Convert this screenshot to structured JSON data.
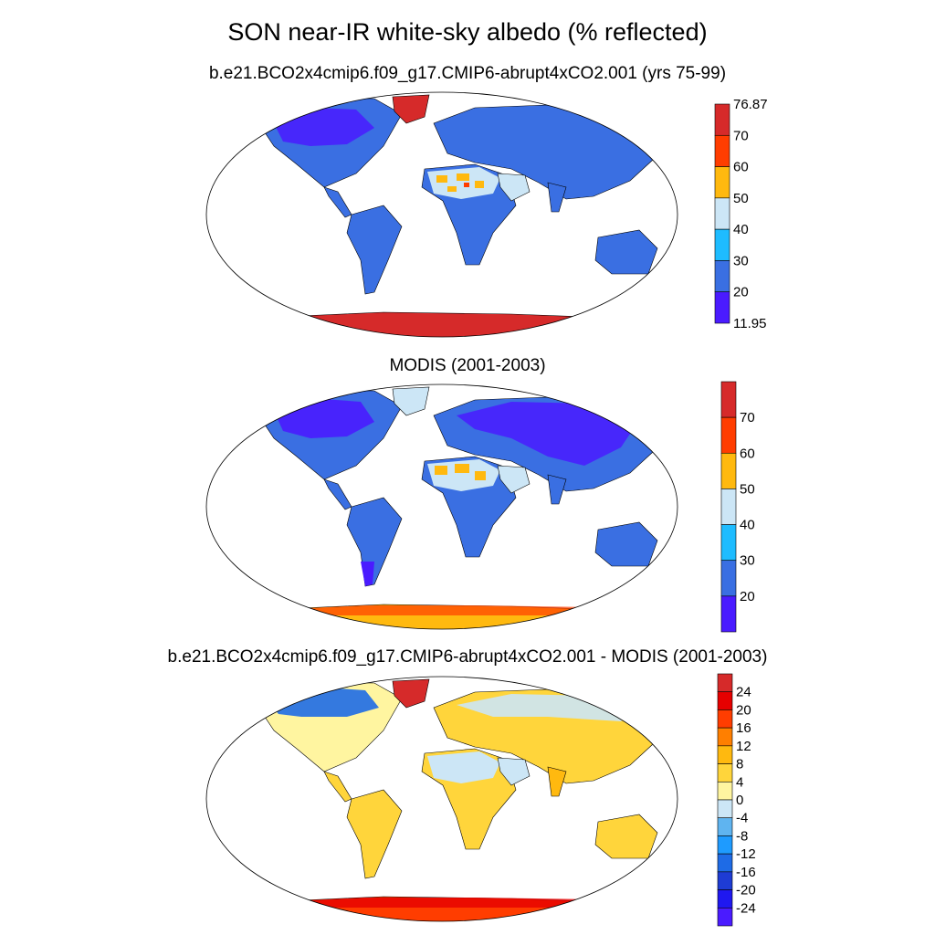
{
  "figure": {
    "title": "SON near-IR white-sky albedo (% reflected)"
  },
  "panels": [
    {
      "subtitle": "b.e21.BCO2x4cmip6.f09_g17.CMIP6-abrupt4xCO2.001 (yrs 75-99)",
      "palette": "absolute",
      "colorbar": {
        "labels": [
          "76.87",
          "70",
          "60",
          "50",
          "40",
          "30",
          "20",
          "11.95"
        ],
        "colors": [
          "#d62a2a",
          "#ff3d00",
          "#ffb90f",
          "#cce6f6",
          "#1ebcff",
          "#3a6fe2",
          "#4a1bff"
        ]
      }
    },
    {
      "subtitle": "MODIS (2001-2003)",
      "palette": "absolute",
      "colorbar": {
        "labels": [
          "70",
          "60",
          "50",
          "40",
          "30",
          "20"
        ],
        "colors": [
          "#d62a2a",
          "#ff3d00",
          "#ffb90f",
          "#cce6f6",
          "#1ebcff",
          "#3a6fe2",
          "#4a1bff"
        ]
      }
    },
    {
      "subtitle": "b.e21.BCO2x4cmip6.f09_g17.CMIP6-abrupt4xCO2.001 - MODIS (2001-2003)",
      "palette": "difference",
      "colorbar": {
        "labels": [
          "24",
          "20",
          "16",
          "12",
          "8",
          "4",
          "0",
          "-4",
          "-8",
          "-12",
          "-16",
          "-20",
          "-24"
        ],
        "colors": [
          "#d62a2a",
          "#e60000",
          "#ff3d00",
          "#ff7f00",
          "#ffb90f",
          "#ffd53b",
          "#fff5a0",
          "#cce6f6",
          "#5fb4f0",
          "#1e9bff",
          "#1e6be6",
          "#1e3cd4",
          "#1f18f0",
          "#4a1bff"
        ]
      }
    }
  ]
}
